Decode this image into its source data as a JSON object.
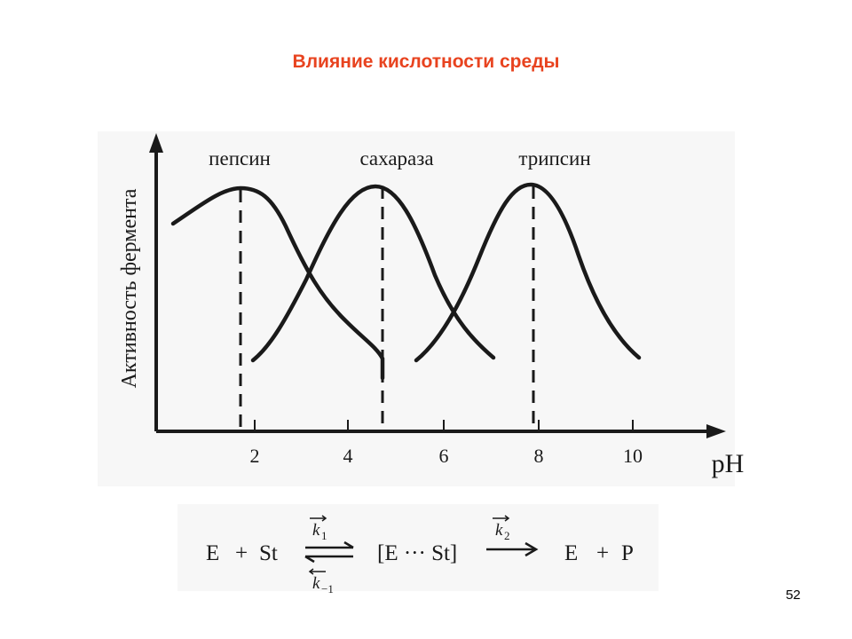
{
  "slide": {
    "title": "Влияние кислотности среды",
    "page_number": "52"
  },
  "figure": {
    "y_axis_label": "Активность фермента",
    "x_axis_label": "pH",
    "curves": [
      {
        "label": "пепсин",
        "optimum_ph": 1.7
      },
      {
        "label": "сахараза",
        "optimum_ph": 4.7
      },
      {
        "label": "трипсин",
        "optimum_ph": 7.8
      }
    ],
    "x_ticks": [
      "2",
      "4",
      "6",
      "8",
      "10"
    ],
    "line_color": "#1a1a1a"
  },
  "equation": {
    "enzyme": "E",
    "plus1": "+",
    "substrate": "St",
    "k1": "k",
    "k1_sub": "1",
    "k_minus1": "k",
    "k_minus1_sub": "−1",
    "complex": "[E ··· St]",
    "k2": "k",
    "k2_sub": "2",
    "product_enzyme": "E",
    "plus2": "+",
    "product": "P"
  }
}
